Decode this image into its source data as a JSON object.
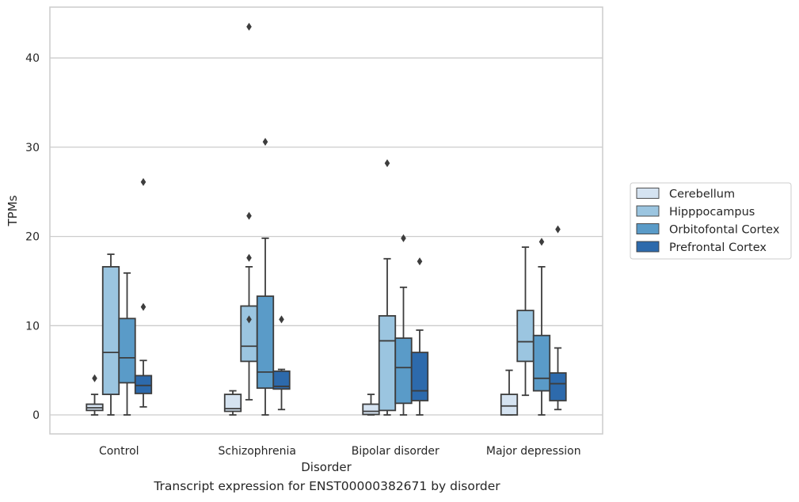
{
  "caption": "Transcript expression for ENST00000382671 by disorder",
  "chart_data": {
    "type": "box",
    "xlabel": "Disorder",
    "ylabel": "TPMs",
    "ylim": [
      -2,
      45.5
    ],
    "yticks": [
      0,
      10,
      20,
      30,
      40
    ],
    "grid": "horizontal",
    "legend_position": "right",
    "categories": [
      "Control",
      "Schizophrenia",
      "Bipolar disorder",
      "Major depression"
    ],
    "series": [
      {
        "name": "Cerebellum",
        "color": "#d5e3f1",
        "boxes": [
          {
            "whisker_low": 0.0,
            "q1": 0.5,
            "median": 0.8,
            "q3": 1.2,
            "whisker_high": 2.3,
            "outliers": [
              4.1
            ]
          },
          {
            "whisker_low": 0.0,
            "q1": 0.4,
            "median": 0.7,
            "q3": 2.3,
            "whisker_high": 2.7,
            "outliers": []
          },
          {
            "whisker_low": 0.0,
            "q1": 0.05,
            "median": 0.4,
            "q3": 1.2,
            "whisker_high": 2.3,
            "outliers": []
          },
          {
            "whisker_low": 0.0,
            "q1": 0.0,
            "median": 1.0,
            "q3": 2.3,
            "whisker_high": 5.0,
            "outliers": []
          }
        ]
      },
      {
        "name": "Hipppocampus",
        "color": "#9bc5e0",
        "boxes": [
          {
            "whisker_low": 0.0,
            "q1": 2.3,
            "median": 7.0,
            "q3": 16.6,
            "whisker_high": 18.0,
            "outliers": []
          },
          {
            "whisker_low": 1.7,
            "q1": 6.0,
            "median": 7.7,
            "q3": 12.2,
            "whisker_high": 16.6,
            "outliers": [
              17.6,
              10.7,
              22.3,
              43.5
            ]
          },
          {
            "whisker_low": 0.0,
            "q1": 0.5,
            "median": 8.3,
            "q3": 11.1,
            "whisker_high": 17.5,
            "outliers": [
              28.2
            ]
          },
          {
            "whisker_low": 2.2,
            "q1": 6.0,
            "median": 8.2,
            "q3": 11.7,
            "whisker_high": 18.8,
            "outliers": []
          }
        ]
      },
      {
        "name": "Orbitofontal Cortex",
        "color": "#5a9bc8",
        "boxes": [
          {
            "whisker_low": 0.0,
            "q1": 3.6,
            "median": 6.4,
            "q3": 10.8,
            "whisker_high": 15.9,
            "outliers": []
          },
          {
            "whisker_low": 0.0,
            "q1": 3.0,
            "median": 4.8,
            "q3": 13.3,
            "whisker_high": 19.8,
            "outliers": [
              30.6
            ]
          },
          {
            "whisker_low": 0.0,
            "q1": 1.3,
            "median": 5.3,
            "q3": 8.6,
            "whisker_high": 14.3,
            "outliers": [
              19.8
            ]
          },
          {
            "whisker_low": 0.0,
            "q1": 2.7,
            "median": 4.1,
            "q3": 8.9,
            "whisker_high": 16.6,
            "outliers": [
              19.4
            ]
          }
        ]
      },
      {
        "name": "Prefrontal Cortex",
        "color": "#2d6aac",
        "boxes": [
          {
            "whisker_low": 0.9,
            "q1": 2.4,
            "median": 3.3,
            "q3": 4.4,
            "whisker_high": 6.1,
            "outliers": [
              12.1,
              26.1
            ]
          },
          {
            "whisker_low": 0.6,
            "q1": 2.9,
            "median": 3.2,
            "q3": 4.9,
            "whisker_high": 5.1,
            "outliers": [
              10.7
            ]
          },
          {
            "whisker_low": 0.0,
            "q1": 1.6,
            "median": 2.7,
            "q3": 7.0,
            "whisker_high": 9.5,
            "outliers": [
              17.2
            ]
          },
          {
            "whisker_low": 0.6,
            "q1": 1.6,
            "median": 3.5,
            "q3": 4.7,
            "whisker_high": 7.5,
            "outliers": [
              20.8
            ]
          }
        ]
      }
    ]
  }
}
